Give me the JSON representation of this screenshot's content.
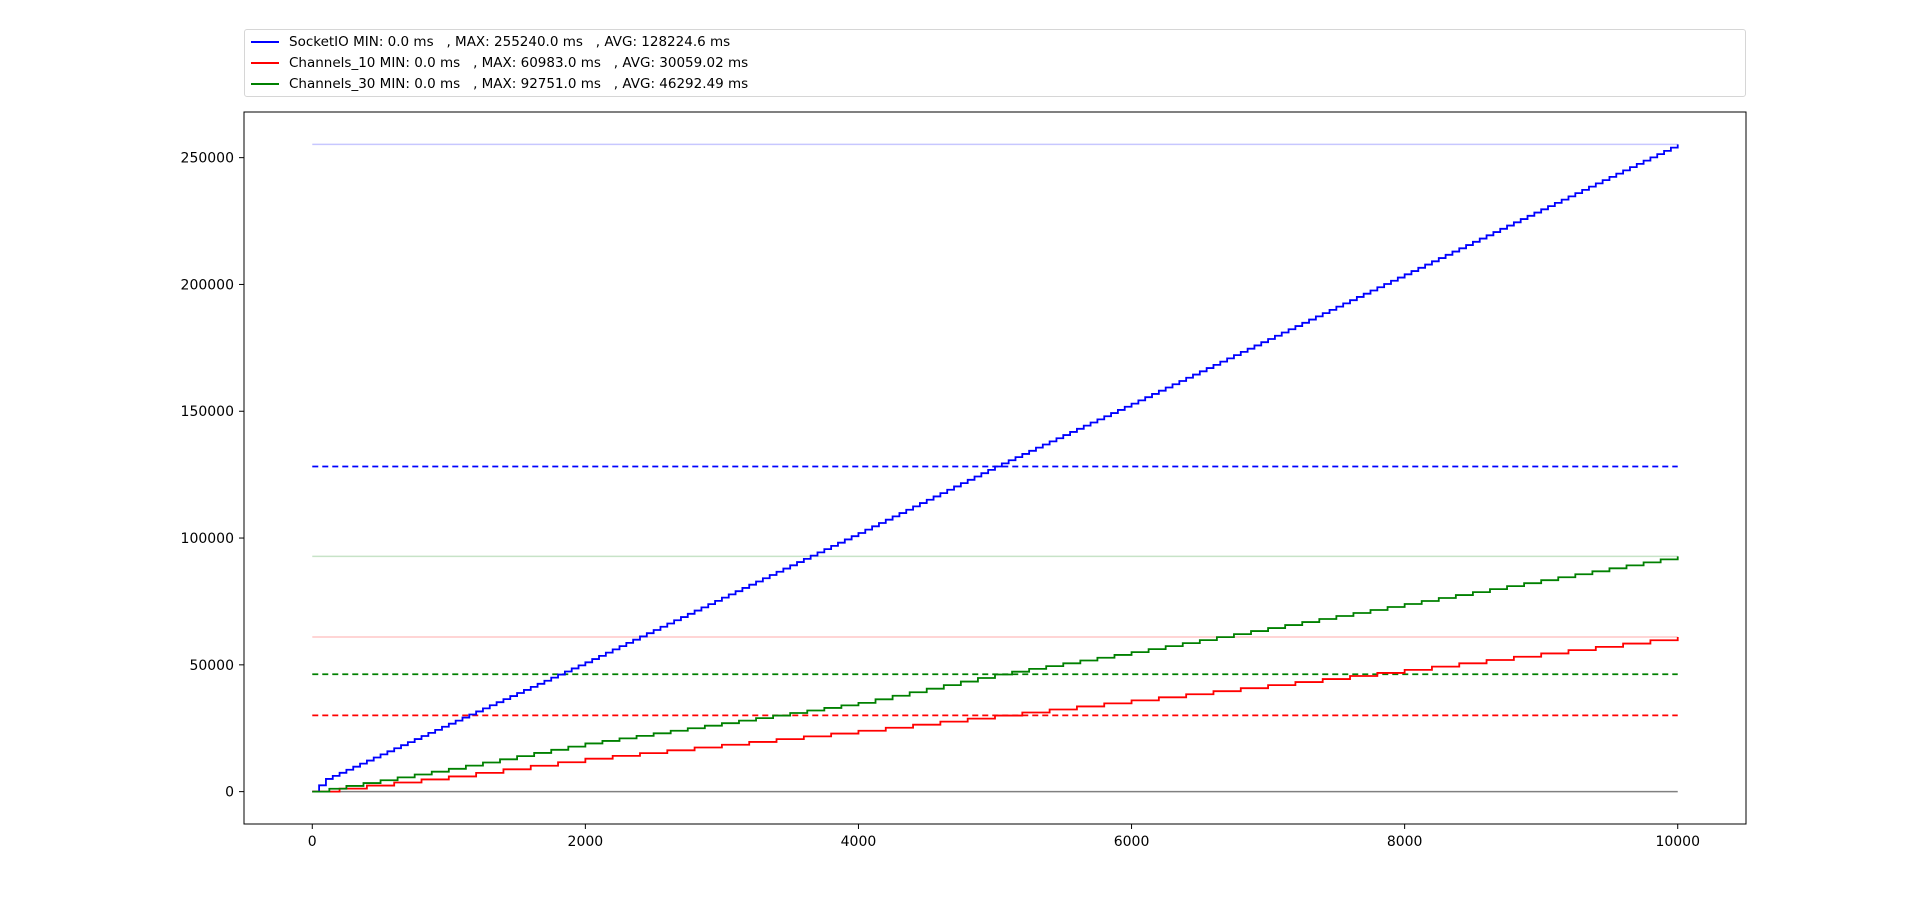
{
  "chart_data": {
    "type": "line",
    "title": "",
    "xlabel": "",
    "ylabel": "",
    "xlim": [
      -500,
      10500
    ],
    "ylim": [
      -12762,
      268002
    ],
    "x_ticks": [
      0,
      2000,
      4000,
      6000,
      8000,
      10000
    ],
    "y_ticks": [
      0,
      50000,
      100000,
      150000,
      200000,
      250000
    ],
    "x_tick_labels": [
      "0",
      "2000",
      "4000",
      "6000",
      "8000",
      "10000"
    ],
    "y_tick_labels": [
      "0",
      "50000",
      "100000",
      "150000",
      "200000",
      "250000"
    ],
    "grid": false,
    "legend_position": "top",
    "x_range": [
      0,
      10000
    ],
    "series": [
      {
        "name": "SocketIO",
        "legend_label": "SocketIO MIN: 0.0 ms   , MAX: 255240.0 ms   , AVG: 128224.6 ms",
        "color": "#0000ff",
        "min": 0.0,
        "max": 255240.0,
        "avg": 128224.6,
        "steps": 200,
        "points": [
          [
            0,
            0
          ],
          [
            100,
            5000
          ],
          [
            2000,
            51000
          ],
          [
            4000,
            102000
          ],
          [
            5000,
            128200
          ],
          [
            6000,
            153000
          ],
          [
            8000,
            204000
          ],
          [
            10000,
            255240
          ]
        ]
      },
      {
        "name": "Channels_10",
        "legend_label": "Channels_10 MIN: 0.0 ms   , MAX: 60983.0 ms   , AVG: 30059.02 ms",
        "color": "#ff0000",
        "min": 0.0,
        "max": 60983.0,
        "avg": 30059.02,
        "steps": 50,
        "points": [
          [
            0,
            0
          ],
          [
            1000,
            6000
          ],
          [
            2000,
            13000
          ],
          [
            4000,
            24000
          ],
          [
            6000,
            36000
          ],
          [
            8000,
            48000
          ],
          [
            10000,
            60983
          ]
        ]
      },
      {
        "name": "Channels_30",
        "legend_label": "Channels_30 MIN: 0.0 ms   , MAX: 92751.0 ms   , AVG: 46292.49 ms",
        "color": "#008000",
        "min": 0.0,
        "max": 92751.0,
        "avg": 46292.49,
        "steps": 80,
        "points": [
          [
            0,
            0
          ],
          [
            1000,
            9000
          ],
          [
            2000,
            19000
          ],
          [
            4000,
            35000
          ],
          [
            5000,
            46200
          ],
          [
            6000,
            55000
          ],
          [
            8000,
            74000
          ],
          [
            10000,
            92751
          ]
        ]
      }
    ],
    "zero_line_color": "#808080"
  }
}
